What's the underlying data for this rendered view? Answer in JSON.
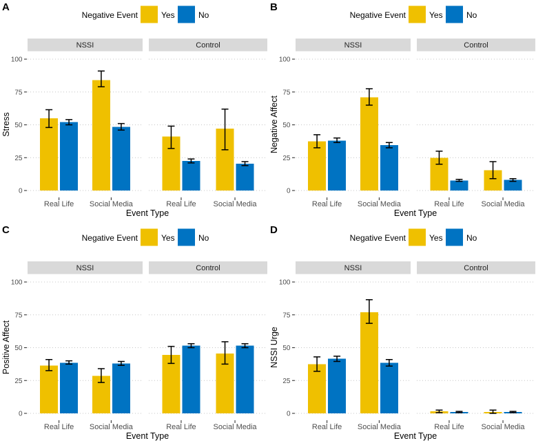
{
  "figure": {
    "background": "#ffffff",
    "layout": "2x2 faceted bar panels"
  },
  "legend": {
    "title": "Negative Event",
    "position": "top-center",
    "items": [
      {
        "label": "Yes",
        "color": "#EFC000"
      },
      {
        "label": "No",
        "color": "#0073C2"
      }
    ]
  },
  "axes": {
    "xlabel": "Event Type",
    "yticks": [
      0,
      25,
      75,
      100
    ],
    "yticks_all": [
      0,
      25,
      50,
      75,
      100
    ],
    "ylim": [
      0,
      100
    ],
    "grid": "dotted-horizontal-major"
  },
  "facets": [
    "NSSI",
    "Control"
  ],
  "categories": [
    "Real Life",
    "Social Media"
  ],
  "groups": [
    "NSSI / Real Life",
    "NSSI / Social Media",
    "Control / Real Life",
    "Control / Social Media"
  ],
  "chart_data": [
    {
      "type": "bar",
      "panel": "A",
      "ylabel": "Stress",
      "error_bars": true,
      "series": [
        {
          "name": "Yes",
          "color": "#EFC000",
          "values": [
            55,
            84,
            41,
            47
          ],
          "err_low": [
            48,
            79,
            32,
            31
          ],
          "err_high": [
            61.5,
            91,
            49,
            62
          ]
        },
        {
          "name": "No",
          "color": "#0073C2",
          "values": [
            52,
            48.5,
            22.5,
            20.5
          ],
          "err_low": [
            50,
            46,
            21,
            19
          ],
          "err_high": [
            54,
            51,
            24,
            22
          ]
        }
      ]
    },
    {
      "type": "bar",
      "panel": "B",
      "ylabel": "Negative Affect",
      "error_bars": true,
      "series": [
        {
          "name": "Yes",
          "color": "#EFC000",
          "values": [
            37.5,
            71,
            25,
            15.5
          ],
          "err_low": [
            32.5,
            65,
            20,
            9
          ],
          "err_high": [
            42.5,
            77.5,
            30,
            22
          ]
        },
        {
          "name": "No",
          "color": "#0073C2",
          "values": [
            38,
            34.5,
            7.5,
            8
          ],
          "err_low": [
            36.5,
            32.5,
            7,
            7
          ],
          "err_high": [
            40,
            36.5,
            8.5,
            9
          ]
        }
      ]
    },
    {
      "type": "bar",
      "panel": "C",
      "ylabel": "Positive Affect",
      "error_bars": true,
      "series": [
        {
          "name": "Yes",
          "color": "#EFC000",
          "values": [
            36.5,
            28.5,
            44.5,
            45.5
          ],
          "err_low": [
            32.5,
            23.5,
            38,
            37.5
          ],
          "err_high": [
            41,
            34,
            51,
            54.5
          ]
        },
        {
          "name": "No",
          "color": "#0073C2",
          "values": [
            38.5,
            38,
            51.5,
            51.5
          ],
          "err_low": [
            37.5,
            36.5,
            50,
            50
          ],
          "err_high": [
            40,
            39.5,
            53,
            53
          ]
        }
      ]
    },
    {
      "type": "bar",
      "panel": "D",
      "ylabel": "NSSI Urge",
      "error_bars": true,
      "series": [
        {
          "name": "Yes",
          "color": "#EFC000",
          "values": [
            37.5,
            77,
            1.5,
            1
          ],
          "err_low": [
            32,
            68.5,
            0.5,
            0
          ],
          "err_high": [
            43,
            86.5,
            2.5,
            2.5
          ]
        },
        {
          "name": "No",
          "color": "#0073C2",
          "values": [
            41.5,
            38.5,
            1,
            1
          ],
          "err_low": [
            39.5,
            36,
            0.5,
            0.5
          ],
          "err_high": [
            43.5,
            41,
            1.5,
            1.5
          ]
        }
      ]
    }
  ]
}
